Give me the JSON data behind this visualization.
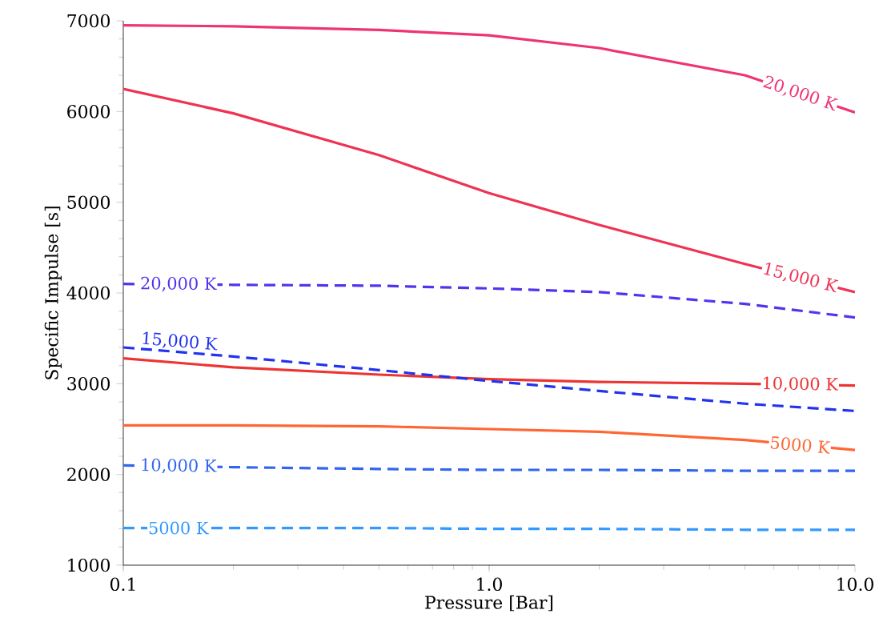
{
  "chart_data": {
    "type": "line",
    "xlabel": "Pressure [Bar]",
    "ylabel": "Specific Impulse [s]",
    "log": "x",
    "xlim": [
      0.1,
      10
    ],
    "ylim": [
      1000,
      7000
    ],
    "xticks": [
      {
        "value": 0.1,
        "label": "0.1"
      },
      {
        "value": 1,
        "label": "1.0"
      },
      {
        "value": 10,
        "label": "10.0"
      }
    ],
    "yticks": [
      1000,
      2000,
      3000,
      4000,
      5000,
      6000,
      7000
    ],
    "grid": false,
    "marker": "none",
    "x": [
      0.1,
      0.2,
      0.5,
      1,
      2,
      5,
      10
    ],
    "series": [
      {
        "name": "20,000 K",
        "color": "#ee3377",
        "line_style": "solid",
        "values": [
          6950,
          6940,
          6900,
          6840,
          6700,
          6400,
          5990
        ]
      },
      {
        "name": "15,000 K",
        "color": "#ee3355",
        "line_style": "solid",
        "values": [
          6250,
          5980,
          5520,
          5100,
          4750,
          4320,
          4010
        ]
      },
      {
        "name": "10,000 K",
        "color": "#ee3333",
        "line_style": "solid",
        "values": [
          3280,
          3180,
          3100,
          3050,
          3020,
          3000,
          2980
        ]
      },
      {
        "name": "5000 K",
        "color": "#ff6633",
        "line_style": "solid",
        "values": [
          2540,
          2540,
          2530,
          2500,
          2470,
          2380,
          2270
        ]
      },
      {
        "name": "20,000 K",
        "color": "#5533ee",
        "line_style": "dashed",
        "values": [
          4100,
          4090,
          4080,
          4050,
          4010,
          3880,
          3730
        ]
      },
      {
        "name": "15,000 K",
        "color": "#2233ee",
        "line_style": "dashed",
        "values": [
          3400,
          3300,
          3150,
          3030,
          2920,
          2780,
          2700
        ]
      },
      {
        "name": "10,000 K",
        "color": "#3366ee",
        "line_style": "dashed",
        "values": [
          2100,
          2080,
          2060,
          2050,
          2050,
          2040,
          2040
        ]
      },
      {
        "name": "5000 K",
        "color": "#3399ff",
        "line_style": "dashed",
        "values": [
          1410,
          1410,
          1410,
          1400,
          1400,
          1390,
          1390
        ]
      }
    ]
  }
}
